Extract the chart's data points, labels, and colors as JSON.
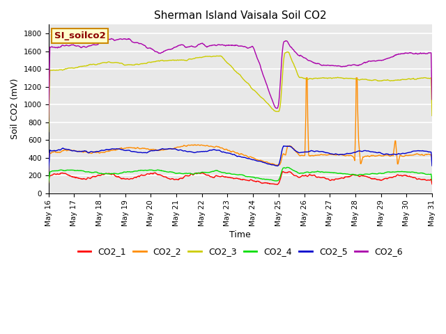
{
  "title": "Sherman Island Vaisala Soil CO2",
  "xlabel": "Time",
  "ylabel": "Soil CO2 (mV)",
  "ylim": [
    0,
    1900
  ],
  "yticks": [
    0,
    200,
    400,
    600,
    800,
    1000,
    1200,
    1400,
    1600,
    1800
  ],
  "legend_label": "SI_soilco2",
  "colors": {
    "CO2_1": "#ff0000",
    "CO2_2": "#ff8c00",
    "CO2_3": "#cccc00",
    "CO2_4": "#00dd00",
    "CO2_5": "#0000cc",
    "CO2_6": "#aa00aa"
  },
  "background_color": "#e8e8e8",
  "grid_color": "#ffffff",
  "annotation_box_color": "#ffffcc",
  "annotation_box_edge": "#cc8800",
  "title_fontsize": 11,
  "axis_label_fontsize": 9,
  "tick_fontsize": 7.5,
  "legend_fontsize": 9
}
